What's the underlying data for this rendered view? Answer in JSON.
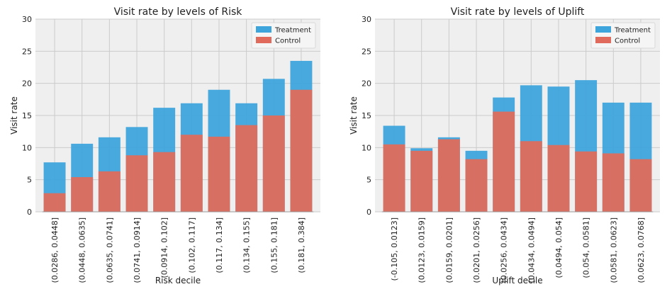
{
  "colors": {
    "treatment": "#3ea4dc",
    "control": "#e06b5c",
    "plot_bg": "#efefef",
    "grid": "#cbcbcb"
  },
  "chart_data": [
    {
      "type": "bar",
      "title": "Visit rate by levels of Risk",
      "xlabel": "Risk decile",
      "ylabel": "Visit rate",
      "ylim": [
        0,
        30
      ],
      "yticks": [
        0,
        5,
        10,
        15,
        20,
        25,
        30
      ],
      "grid": true,
      "legend_position": "top-right",
      "overlay": true,
      "categories": [
        "(0.0286, 0.0448]",
        "(0.0448, 0.0635]",
        "(0.0635, 0.0741]",
        "(0.0741, 0.0914]",
        "(0.0914, 0.102]",
        "(0.102, 0.117]",
        "(0.117, 0.134]",
        "(0.134, 0.155]",
        "(0.155, 0.181]",
        "(0.181, 0.384]"
      ],
      "series": [
        {
          "name": "Treatment",
          "color": "#3ea4dc",
          "values": [
            7.7,
            10.6,
            11.6,
            13.2,
            16.2,
            16.9,
            19.0,
            16.9,
            20.7,
            23.5
          ]
        },
        {
          "name": "Control",
          "color": "#e06b5c",
          "values": [
            2.9,
            5.4,
            6.3,
            8.8,
            9.3,
            12.0,
            11.7,
            13.5,
            15.0,
            19.0
          ]
        }
      ]
    },
    {
      "type": "bar",
      "title": "Visit rate by levels of Uplift",
      "xlabel": "Uplift decile",
      "ylabel": "Visit rate",
      "ylim": [
        0,
        30
      ],
      "yticks": [
        0,
        5,
        10,
        15,
        20,
        25,
        30
      ],
      "grid": true,
      "legend_position": "top-right",
      "overlay": true,
      "categories": [
        "(-0.105, 0.0123]",
        "(0.0123, 0.0159]",
        "(0.0159, 0.0201]",
        "(0.0201, 0.0256]",
        "(0.0256, 0.0434]",
        "(0.0434, 0.0494]",
        "(0.0494, 0.054]",
        "(0.054, 0.0581]",
        "(0.0581, 0.0623]",
        "(0.0623, 0.0768]"
      ],
      "series": [
        {
          "name": "Treatment",
          "color": "#3ea4dc",
          "values": [
            13.4,
            9.9,
            11.6,
            9.5,
            17.8,
            19.7,
            19.5,
            20.5,
            17.0,
            17.0
          ]
        },
        {
          "name": "Control",
          "color": "#e06b5c",
          "values": [
            10.5,
            9.5,
            11.3,
            8.2,
            15.6,
            11.0,
            10.4,
            9.4,
            9.1,
            8.2
          ]
        }
      ]
    }
  ]
}
